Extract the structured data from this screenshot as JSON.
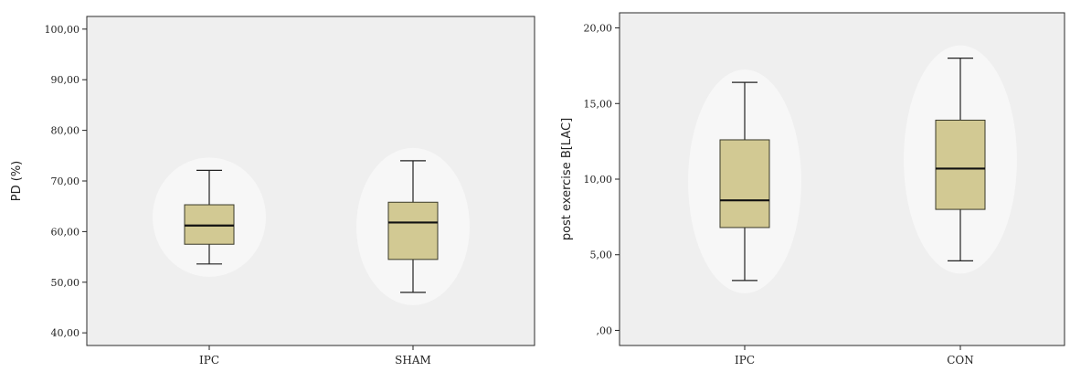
{
  "chart_data": [
    {
      "type": "boxplot",
      "title": "",
      "xlabel": "",
      "ylabel": "PD (%)",
      "ylim": [
        37.5,
        102.5
      ],
      "yticks": [
        "40,00",
        "50,00",
        "60,00",
        "70,00",
        "80,00",
        "90,00",
        "100,00"
      ],
      "ytick_values": [
        40,
        50,
        60,
        70,
        80,
        90,
        100
      ],
      "categories": [
        "IPC",
        "SHAM"
      ],
      "boxes": [
        {
          "category": "IPC",
          "min": 53.6,
          "q1": 57.5,
          "median": 61.2,
          "q3": 65.3,
          "max": 72.1
        },
        {
          "category": "SHAM",
          "min": 48.0,
          "q1": 54.5,
          "median": 61.8,
          "q3": 65.8,
          "max": 74.0
        }
      ],
      "grid": false,
      "colors": {
        "box_fill": "#d2c993",
        "box_edge": "#3a3a2a",
        "plot_bg": "#efefef"
      }
    },
    {
      "type": "boxplot",
      "title": "",
      "xlabel": "",
      "ylabel": "post exercise B[LAC]",
      "ylim": [
        -1.0,
        21.0
      ],
      "yticks": [
        ",00",
        "5,00",
        "10,00",
        "15,00",
        "20,00"
      ],
      "ytick_values": [
        0,
        5,
        10,
        15,
        20
      ],
      "categories": [
        "IPC",
        "CON"
      ],
      "boxes": [
        {
          "category": "IPC",
          "min": 3.3,
          "q1": 6.8,
          "median": 8.6,
          "q3": 12.6,
          "max": 16.4
        },
        {
          "category": "CON",
          "min": 4.6,
          "q1": 8.0,
          "median": 10.7,
          "q3": 13.9,
          "max": 18.0
        }
      ],
      "grid": false,
      "colors": {
        "box_fill": "#d2c993",
        "box_edge": "#3a3a2a",
        "plot_bg": "#efefef"
      }
    }
  ]
}
